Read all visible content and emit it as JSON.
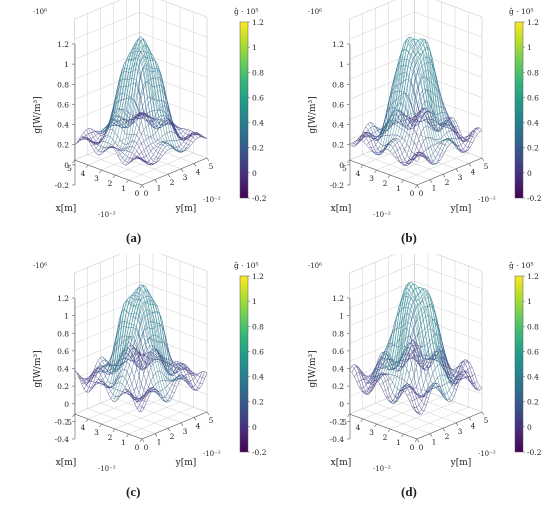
{
  "figure": {
    "panels": [
      {
        "caption": "(a)",
        "z_ticks": [
          "1.2",
          "1",
          "0.8",
          "0.6",
          "0.4",
          "0.2",
          "0",
          "-0.2"
        ],
        "z_exp": "·10⁶",
        "colorbar_title": "ĝ · 10⁵",
        "colorbar_ticks": [
          "1.2",
          "1",
          "0.8",
          "0.6",
          "0.4",
          "0.2",
          "0",
          "-0.2"
        ],
        "zlabel": "g[W/m³]",
        "xlabel": "x[m]",
        "ylabel": "y[m]",
        "x_ticks": [
          "0",
          "1",
          "2",
          "3",
          "4",
          "5"
        ],
        "y_ticks": [
          "0",
          "1",
          "2",
          "3",
          "4",
          "5"
        ],
        "x_exp": "·10⁻²",
        "y_exp": "·10⁻²"
      },
      {
        "caption": "(b)",
        "z_ticks": [
          "1.2",
          "1",
          "0.8",
          "0.6",
          "0.4",
          "0.2",
          "0",
          "-0.2"
        ],
        "z_exp": "·10⁶",
        "colorbar_title": "ĝ · 10⁵",
        "colorbar_ticks": [
          "1.2",
          "1",
          "0.8",
          "0.6",
          "0.4",
          "0.2",
          "0",
          "-0.2"
        ],
        "zlabel": "g[W/m³]",
        "xlabel": "x[m]",
        "ylabel": "y[m]",
        "x_ticks": [
          "0",
          "1",
          "2",
          "3",
          "4",
          "5"
        ],
        "y_ticks": [
          "0",
          "1",
          "2",
          "3",
          "4",
          "5"
        ],
        "x_exp": "·10⁻²",
        "y_exp": "·10⁻²"
      },
      {
        "caption": "(c)",
        "z_ticks": [
          "1.2",
          "1",
          "0.8",
          "0.6",
          "0.4",
          "0.2",
          "0",
          "-0.2",
          "-0.4"
        ],
        "z_exp": "·10⁶",
        "colorbar_title": "ĝ · 10⁵",
        "colorbar_ticks": [
          "1.2",
          "1",
          "0.8",
          "0.6",
          "0.4",
          "0.2",
          "0",
          "-0.2"
        ],
        "zlabel": "g[W/m³]",
        "xlabel": "x[m]",
        "ylabel": "y[m]",
        "x_ticks": [
          "0",
          "1",
          "2",
          "3",
          "4",
          "5"
        ],
        "y_ticks": [
          "0",
          "1",
          "2",
          "3",
          "4",
          "5"
        ],
        "x_exp": "·10⁻²",
        "y_exp": "·10⁻²"
      },
      {
        "caption": "(d)",
        "z_ticks": [
          "1.2",
          "1",
          "0.8",
          "0.6",
          "0.4",
          "0.2",
          "0",
          "-0.2",
          "-0.4"
        ],
        "z_exp": "·10⁶",
        "colorbar_title": "ĝ · 10⁵",
        "colorbar_ticks": [
          "1.2",
          "1",
          "0.8",
          "0.6",
          "0.4",
          "0.2",
          "0",
          "-0.2"
        ],
        "zlabel": "g[W/m³]",
        "xlabel": "x[m]",
        "ylabel": "y[m]",
        "x_ticks": [
          "0",
          "1",
          "2",
          "3",
          "4",
          "5"
        ],
        "y_ticks": [
          "0",
          "1",
          "2",
          "3",
          "4",
          "5"
        ],
        "x_exp": "·10⁻²",
        "y_exp": "·10⁻²"
      }
    ]
  },
  "chart_data": [
    {
      "type": "surface",
      "x_range": [
        0,
        0.05
      ],
      "y_range": [
        0,
        0.05
      ],
      "zlim": [
        -0.2,
        1.2
      ],
      "z_scale": 1000000,
      "plateau_peak": 1.1,
      "colorbar_range": [
        -0.2,
        1.2
      ],
      "colormap": "viridis"
    },
    {
      "type": "surface",
      "x_range": [
        0,
        0.05
      ],
      "y_range": [
        0,
        0.05
      ],
      "zlim": [
        -0.2,
        1.2
      ],
      "z_scale": 1000000,
      "plateau_peak": 1.15,
      "colorbar_range": [
        -0.2,
        1.2
      ],
      "colormap": "viridis"
    },
    {
      "type": "surface",
      "x_range": [
        0,
        0.05
      ],
      "y_range": [
        0,
        0.05
      ],
      "zlim": [
        -0.4,
        1.2
      ],
      "z_scale": 1000000,
      "plateau_peak": 1.15,
      "colorbar_range": [
        -0.2,
        1.2
      ],
      "colormap": "viridis"
    },
    {
      "type": "surface",
      "x_range": [
        0,
        0.05
      ],
      "y_range": [
        0,
        0.05
      ],
      "zlim": [
        -0.4,
        1.2
      ],
      "z_scale": 1000000,
      "plateau_peak": 1.2,
      "colorbar_range": [
        -0.2,
        1.2
      ],
      "colormap": "viridis"
    }
  ]
}
